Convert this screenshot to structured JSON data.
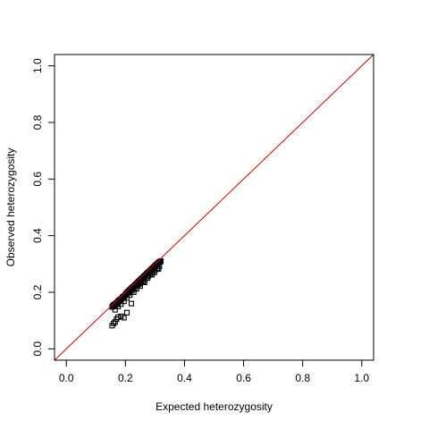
{
  "chart_data": {
    "type": "scatter",
    "title": "",
    "xlabel": "Expected heterozygosity",
    "ylabel": "Observed heterozygosity",
    "xlim": [
      -0.04,
      1.04
    ],
    "ylim": [
      -0.04,
      1.04
    ],
    "xticks": [
      0.0,
      0.2,
      0.4,
      0.6,
      0.8,
      1.0
    ],
    "yticks": [
      0.0,
      0.2,
      0.4,
      0.6,
      0.8,
      1.0
    ],
    "xtick_labels": [
      "0.0",
      "0.2",
      "0.4",
      "0.6",
      "0.8",
      "1.0"
    ],
    "ytick_labels": [
      "0.0",
      "0.2",
      "0.4",
      "0.6",
      "0.8",
      "1.0"
    ],
    "grid": false,
    "legend": null,
    "point_color": "#000000",
    "point_marker": "open-square",
    "reference_line": {
      "from": [
        -0.04,
        -0.04
      ],
      "to": [
        1.04,
        1.04
      ],
      "color": "#cc0000"
    },
    "series": [
      {
        "points": [
          [
            0.155,
            0.148
          ],
          [
            0.158,
            0.152
          ],
          [
            0.16,
            0.155
          ],
          [
            0.162,
            0.15
          ],
          [
            0.165,
            0.158
          ],
          [
            0.168,
            0.16
          ],
          [
            0.17,
            0.163
          ],
          [
            0.172,
            0.158
          ],
          [
            0.175,
            0.168
          ],
          [
            0.178,
            0.17
          ],
          [
            0.18,
            0.172
          ],
          [
            0.183,
            0.175
          ],
          [
            0.185,
            0.168
          ],
          [
            0.188,
            0.178
          ],
          [
            0.19,
            0.182
          ],
          [
            0.193,
            0.185
          ],
          [
            0.195,
            0.18
          ],
          [
            0.198,
            0.188
          ],
          [
            0.2,
            0.192
          ],
          [
            0.203,
            0.195
          ],
          [
            0.205,
            0.198
          ],
          [
            0.208,
            0.2
          ],
          [
            0.21,
            0.203
          ],
          [
            0.213,
            0.205
          ],
          [
            0.215,
            0.208
          ],
          [
            0.218,
            0.21
          ],
          [
            0.22,
            0.213
          ],
          [
            0.222,
            0.215
          ],
          [
            0.225,
            0.218
          ],
          [
            0.228,
            0.22
          ],
          [
            0.23,
            0.222
          ],
          [
            0.233,
            0.225
          ],
          [
            0.235,
            0.228
          ],
          [
            0.238,
            0.23
          ],
          [
            0.24,
            0.233
          ],
          [
            0.243,
            0.235
          ],
          [
            0.245,
            0.238
          ],
          [
            0.248,
            0.24
          ],
          [
            0.25,
            0.243
          ],
          [
            0.252,
            0.245
          ],
          [
            0.255,
            0.248
          ],
          [
            0.258,
            0.25
          ],
          [
            0.26,
            0.252
          ],
          [
            0.262,
            0.255
          ],
          [
            0.265,
            0.258
          ],
          [
            0.268,
            0.26
          ],
          [
            0.27,
            0.262
          ],
          [
            0.272,
            0.265
          ],
          [
            0.275,
            0.268
          ],
          [
            0.278,
            0.27
          ],
          [
            0.28,
            0.272
          ],
          [
            0.283,
            0.275
          ],
          [
            0.285,
            0.278
          ],
          [
            0.288,
            0.28
          ],
          [
            0.29,
            0.283
          ],
          [
            0.293,
            0.285
          ],
          [
            0.295,
            0.288
          ],
          [
            0.298,
            0.29
          ],
          [
            0.3,
            0.293
          ],
          [
            0.303,
            0.295
          ],
          [
            0.305,
            0.298
          ],
          [
            0.308,
            0.3
          ],
          [
            0.31,
            0.302
          ],
          [
            0.313,
            0.305
          ],
          [
            0.315,
            0.307
          ],
          [
            0.318,
            0.308
          ],
          [
            0.32,
            0.31
          ],
          [
            0.245,
            0.228
          ],
          [
            0.255,
            0.24
          ],
          [
            0.262,
            0.245
          ],
          [
            0.27,
            0.252
          ],
          [
            0.278,
            0.258
          ],
          [
            0.285,
            0.265
          ],
          [
            0.292,
            0.27
          ],
          [
            0.3,
            0.278
          ],
          [
            0.308,
            0.285
          ],
          [
            0.315,
            0.292
          ],
          [
            0.232,
            0.212
          ],
          [
            0.222,
            0.205
          ],
          [
            0.212,
            0.198
          ],
          [
            0.24,
            0.225
          ],
          [
            0.25,
            0.232
          ],
          [
            0.26,
            0.238
          ],
          [
            0.275,
            0.25
          ],
          [
            0.29,
            0.262
          ],
          [
            0.298,
            0.27
          ],
          [
            0.312,
            0.282
          ],
          [
            0.155,
            0.082
          ],
          [
            0.16,
            0.09
          ],
          [
            0.165,
            0.095
          ],
          [
            0.17,
            0.105
          ],
          [
            0.175,
            0.112
          ],
          [
            0.185,
            0.115
          ],
          [
            0.195,
            0.11
          ],
          [
            0.205,
            0.128
          ],
          [
            0.22,
            0.16
          ],
          [
            0.165,
            0.138
          ],
          [
            0.175,
            0.15
          ],
          [
            0.185,
            0.158
          ],
          [
            0.195,
            0.168
          ],
          [
            0.205,
            0.18
          ],
          [
            0.215,
            0.19
          ],
          [
            0.228,
            0.2
          ],
          [
            0.238,
            0.212
          ],
          [
            0.25,
            0.222
          ],
          [
            0.265,
            0.235
          ]
        ]
      }
    ]
  }
}
